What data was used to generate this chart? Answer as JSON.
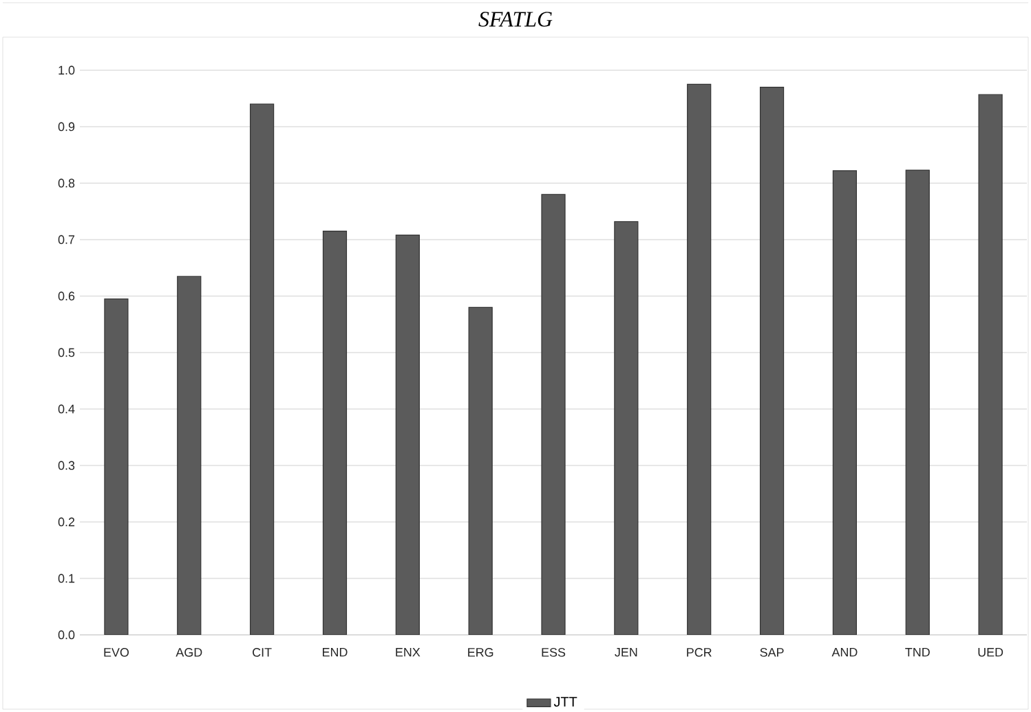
{
  "chart_data": {
    "type": "bar",
    "title": "*SFATLG*",
    "categories": [
      "EVO",
      "AGD",
      "CIT",
      "END",
      "ENX",
      "ERG",
      "ESS",
      "JEN",
      "PCR",
      "SAP",
      "AND",
      "TND",
      "UED"
    ],
    "series": [
      {
        "name": "JTT",
        "color": "#5b5b5b",
        "values": [
          0.595,
          0.635,
          0.94,
          0.715,
          0.708,
          0.58,
          0.78,
          0.732,
          0.975,
          0.97,
          0.822,
          0.823,
          0.957
        ]
      }
    ],
    "ylim": [
      0,
      1
    ],
    "yticks": [
      {
        "value": 0,
        "label": "0.0"
      },
      {
        "value": 0.1,
        "label": "0.1"
      },
      {
        "value": 0.2,
        "label": "0.2"
      },
      {
        "value": 0.3,
        "label": "0.3"
      },
      {
        "value": 0.4,
        "label": "0.4"
      },
      {
        "value": 0.5,
        "label": "0.5"
      },
      {
        "value": 0.6,
        "label": "0.6"
      },
      {
        "value": 0.7,
        "label": "0.7"
      },
      {
        "value": 0.8,
        "label": "0.8"
      },
      {
        "value": 0.9,
        "label": "0.9"
      },
      {
        "value": 1,
        "label": "1.0"
      }
    ],
    "grid": "y",
    "legend": "bottom"
  }
}
